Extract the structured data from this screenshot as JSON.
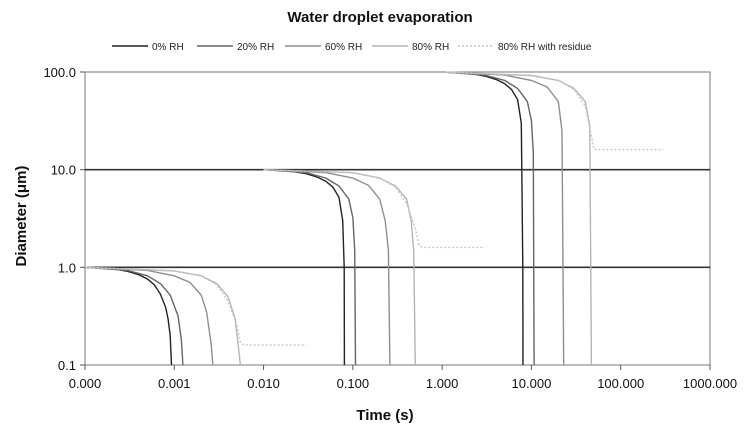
{
  "chart_data": {
    "type": "line",
    "title": "Water droplet evaporation",
    "xlabel": "Time (s)",
    "ylabel": "Diameter (μm)",
    "x_scale": "log",
    "y_scale": "log",
    "xlim": [
      0.0001,
      1000
    ],
    "ylim": [
      0.1,
      100
    ],
    "x_tick_values": [
      0.0001,
      0.001,
      0.01,
      0.1,
      1,
      10,
      100,
      1000
    ],
    "x_tick_labels": [
      "0.000",
      "0.001",
      "0.010",
      "0.100",
      "1.000",
      "10.000",
      "100.000",
      "1000.000"
    ],
    "y_tick_values": [
      0.1,
      1,
      10,
      100
    ],
    "y_tick_labels": [
      "0.1",
      "1.0",
      "10.0",
      "100.0"
    ],
    "gridlines_y": [
      1,
      10
    ],
    "legend_position": "top",
    "series": [
      {
        "name": "0% RH",
        "color": "#222222",
        "dash": "",
        "segments": [
          [
            [
              0.0001,
              1.0
            ],
            [
              0.0002,
              0.97
            ],
            [
              0.0003,
              0.91
            ],
            [
              0.0004,
              0.84
            ],
            [
              0.0005,
              0.76
            ],
            [
              0.0006,
              0.66
            ],
            [
              0.0007,
              0.53
            ],
            [
              0.0008,
              0.39
            ],
            [
              0.00085,
              0.3
            ],
            [
              0.0009,
              0.2
            ],
            [
              0.00093,
              0.1
            ]
          ],
          [
            [
              0.01,
              10.0
            ],
            [
              0.02,
              9.7
            ],
            [
              0.03,
              9.1
            ],
            [
              0.04,
              8.4
            ],
            [
              0.05,
              7.6
            ],
            [
              0.06,
              6.6
            ],
            [
              0.07,
              5.2
            ],
            [
              0.077,
              3.0
            ],
            [
              0.08,
              1.0
            ],
            [
              0.0805,
              0.1
            ]
          ],
          [
            [
              1,
              100
            ],
            [
              2,
              97
            ],
            [
              3,
              91
            ],
            [
              4,
              84
            ],
            [
              5,
              76
            ],
            [
              6,
              66
            ],
            [
              7,
              52
            ],
            [
              7.7,
              30
            ],
            [
              8.0,
              1.0
            ],
            [
              8.05,
              0.1
            ]
          ]
        ]
      },
      {
        "name": "20% RH",
        "color": "#666666",
        "dash": "",
        "segments": [
          [
            [
              0.0001,
              1.0
            ],
            [
              0.0003,
              0.93
            ],
            [
              0.0005,
              0.82
            ],
            [
              0.0007,
              0.68
            ],
            [
              0.0009,
              0.52
            ],
            [
              0.0011,
              0.32
            ],
            [
              0.0012,
              0.18
            ],
            [
              0.00125,
              0.1
            ]
          ],
          [
            [
              0.01,
              10.0
            ],
            [
              0.03,
              9.3
            ],
            [
              0.05,
              8.2
            ],
            [
              0.07,
              6.8
            ],
            [
              0.09,
              5.0
            ],
            [
              0.1,
              3.2
            ],
            [
              0.105,
              1.5
            ],
            [
              0.107,
              0.1
            ]
          ],
          [
            [
              1,
              100
            ],
            [
              3,
              93
            ],
            [
              5,
              82
            ],
            [
              7,
              68
            ],
            [
              9,
              50
            ],
            [
              10,
              32
            ],
            [
              10.5,
              15
            ],
            [
              10.7,
              0.1
            ]
          ]
        ]
      },
      {
        "name": "60% RH",
        "color": "#8f8f8f",
        "dash": "",
        "segments": [
          [
            [
              0.0001,
              1.0
            ],
            [
              0.0005,
              0.93
            ],
            [
              0.001,
              0.82
            ],
            [
              0.0015,
              0.7
            ],
            [
              0.002,
              0.52
            ],
            [
              0.0023,
              0.35
            ],
            [
              0.0026,
              0.16
            ],
            [
              0.0027,
              0.1
            ]
          ],
          [
            [
              0.01,
              10.0
            ],
            [
              0.05,
              9.3
            ],
            [
              0.1,
              8.2
            ],
            [
              0.15,
              6.9
            ],
            [
              0.2,
              5.0
            ],
            [
              0.23,
              3.0
            ],
            [
              0.25,
              1.5
            ],
            [
              0.26,
              0.1
            ]
          ],
          [
            [
              1,
              100
            ],
            [
              5,
              93
            ],
            [
              10,
              82
            ],
            [
              15,
              70
            ],
            [
              20,
              50
            ],
            [
              22,
              25
            ],
            [
              23,
              0.1
            ]
          ]
        ]
      },
      {
        "name": "80% RH",
        "color": "#b4b4b4",
        "dash": "",
        "segments": [
          [
            [
              0.0001,
              1.0
            ],
            [
              0.001,
              0.92
            ],
            [
              0.002,
              0.82
            ],
            [
              0.003,
              0.68
            ],
            [
              0.004,
              0.5
            ],
            [
              0.0048,
              0.3
            ],
            [
              0.0052,
              0.16
            ],
            [
              0.0055,
              0.1
            ]
          ],
          [
            [
              0.01,
              10.0
            ],
            [
              0.1,
              9.3
            ],
            [
              0.2,
              8.2
            ],
            [
              0.3,
              6.8
            ],
            [
              0.4,
              5.0
            ],
            [
              0.45,
              3.0
            ],
            [
              0.48,
              1.5
            ],
            [
              0.5,
              0.1
            ]
          ],
          [
            [
              1,
              100
            ],
            [
              10,
              92
            ],
            [
              20,
              82
            ],
            [
              30,
              68
            ],
            [
              40,
              50
            ],
            [
              45,
              28
            ],
            [
              47,
              0.1
            ]
          ]
        ]
      },
      {
        "name": "80% RH with residue",
        "color": "#c6c6c6",
        "dash": "2,2",
        "segments": [
          [
            [
              0.0001,
              1.0
            ],
            [
              0.001,
              0.92
            ],
            [
              0.002,
              0.82
            ],
            [
              0.003,
              0.66
            ],
            [
              0.004,
              0.45
            ],
            [
              0.005,
              0.26
            ],
            [
              0.0055,
              0.17
            ],
            [
              0.006,
              0.16
            ],
            [
              0.03,
              0.16
            ]
          ],
          [
            [
              0.01,
              10.0
            ],
            [
              0.1,
              9.3
            ],
            [
              0.2,
              8.2
            ],
            [
              0.3,
              6.6
            ],
            [
              0.4,
              4.5
            ],
            [
              0.5,
              2.5
            ],
            [
              0.55,
              1.7
            ],
            [
              0.6,
              1.6
            ],
            [
              3,
              1.6
            ]
          ],
          [
            [
              1,
              100
            ],
            [
              10,
              92
            ],
            [
              20,
              82
            ],
            [
              30,
              66
            ],
            [
              40,
              45
            ],
            [
              48,
              20
            ],
            [
              50,
              16
            ],
            [
              60,
              16
            ],
            [
              300,
              16
            ]
          ]
        ]
      }
    ]
  }
}
